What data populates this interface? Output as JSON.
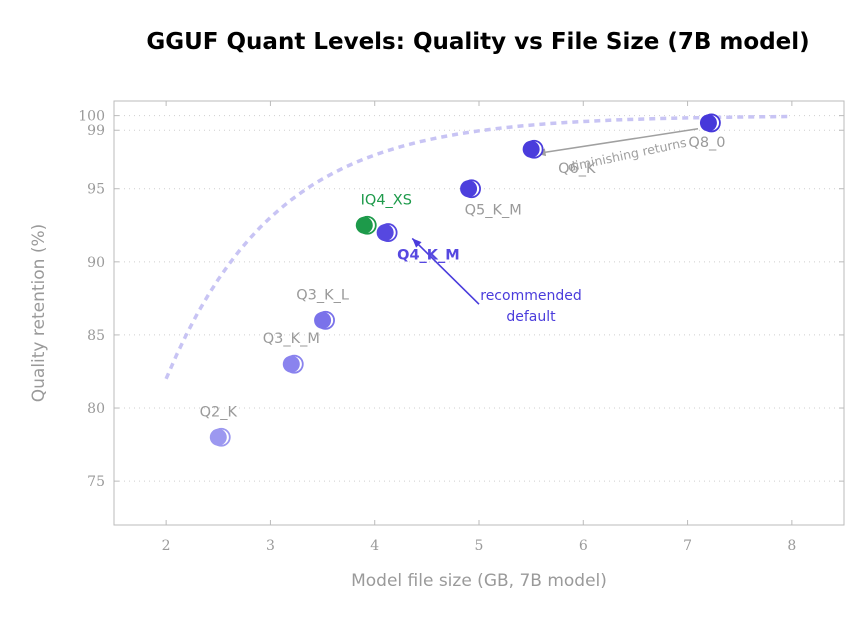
{
  "chart_data": {
    "type": "scatter",
    "title": "GGUF Quant Levels: Quality vs File Size (7B model)",
    "xlabel": "Model file size (GB, 7B model)",
    "ylabel": "Quality retention (%)",
    "xlim": [
      1.5,
      8.5
    ],
    "ylim": [
      72,
      101
    ],
    "xticks": [
      2,
      3,
      4,
      5,
      6,
      7,
      8
    ],
    "yticks": [
      75,
      80,
      85,
      90,
      95,
      99,
      100
    ],
    "grid": "horizontal dotted",
    "points": [
      {
        "label": "Q2_K",
        "x": 2.5,
        "y": 78,
        "color": "#9c98f0"
      },
      {
        "label": "Q3_K_M",
        "x": 3.2,
        "y": 83,
        "color": "#8a83ee"
      },
      {
        "label": "Q3_K_L",
        "x": 3.5,
        "y": 86,
        "color": "#7a72ea"
      },
      {
        "label": "IQ4_XS",
        "x": 3.9,
        "y": 92.5,
        "color": "#1d9a4a"
      },
      {
        "label": "Q4_K_M",
        "x": 4.1,
        "y": 92,
        "color": "#5648e0"
      },
      {
        "label": "Q5_K_M",
        "x": 4.9,
        "y": 95,
        "color": "#4d3fdd"
      },
      {
        "label": "Q6_K",
        "x": 5.5,
        "y": 97.7,
        "color": "#4a3cdc"
      },
      {
        "label": "Q8_0",
        "x": 7.2,
        "y": 99.5,
        "color": "#4638da"
      }
    ],
    "trend_curve": {
      "style": "dashed",
      "color": "#c8c4f4",
      "x_from": 2,
      "x_to": 8
    },
    "annotations": [
      {
        "text_lines": [
          "recommended",
          "default"
        ],
        "color": "#4a3cdc",
        "arrow_from": [
          5.0,
          87.1
        ],
        "arrow_to": [
          4.36,
          91.6
        ]
      },
      {
        "text": "diminishing returns",
        "color": "#a0a0a0",
        "arrow_from": [
          7.1,
          99.1
        ],
        "arrow_to": [
          5.55,
          97.4
        ]
      }
    ]
  }
}
